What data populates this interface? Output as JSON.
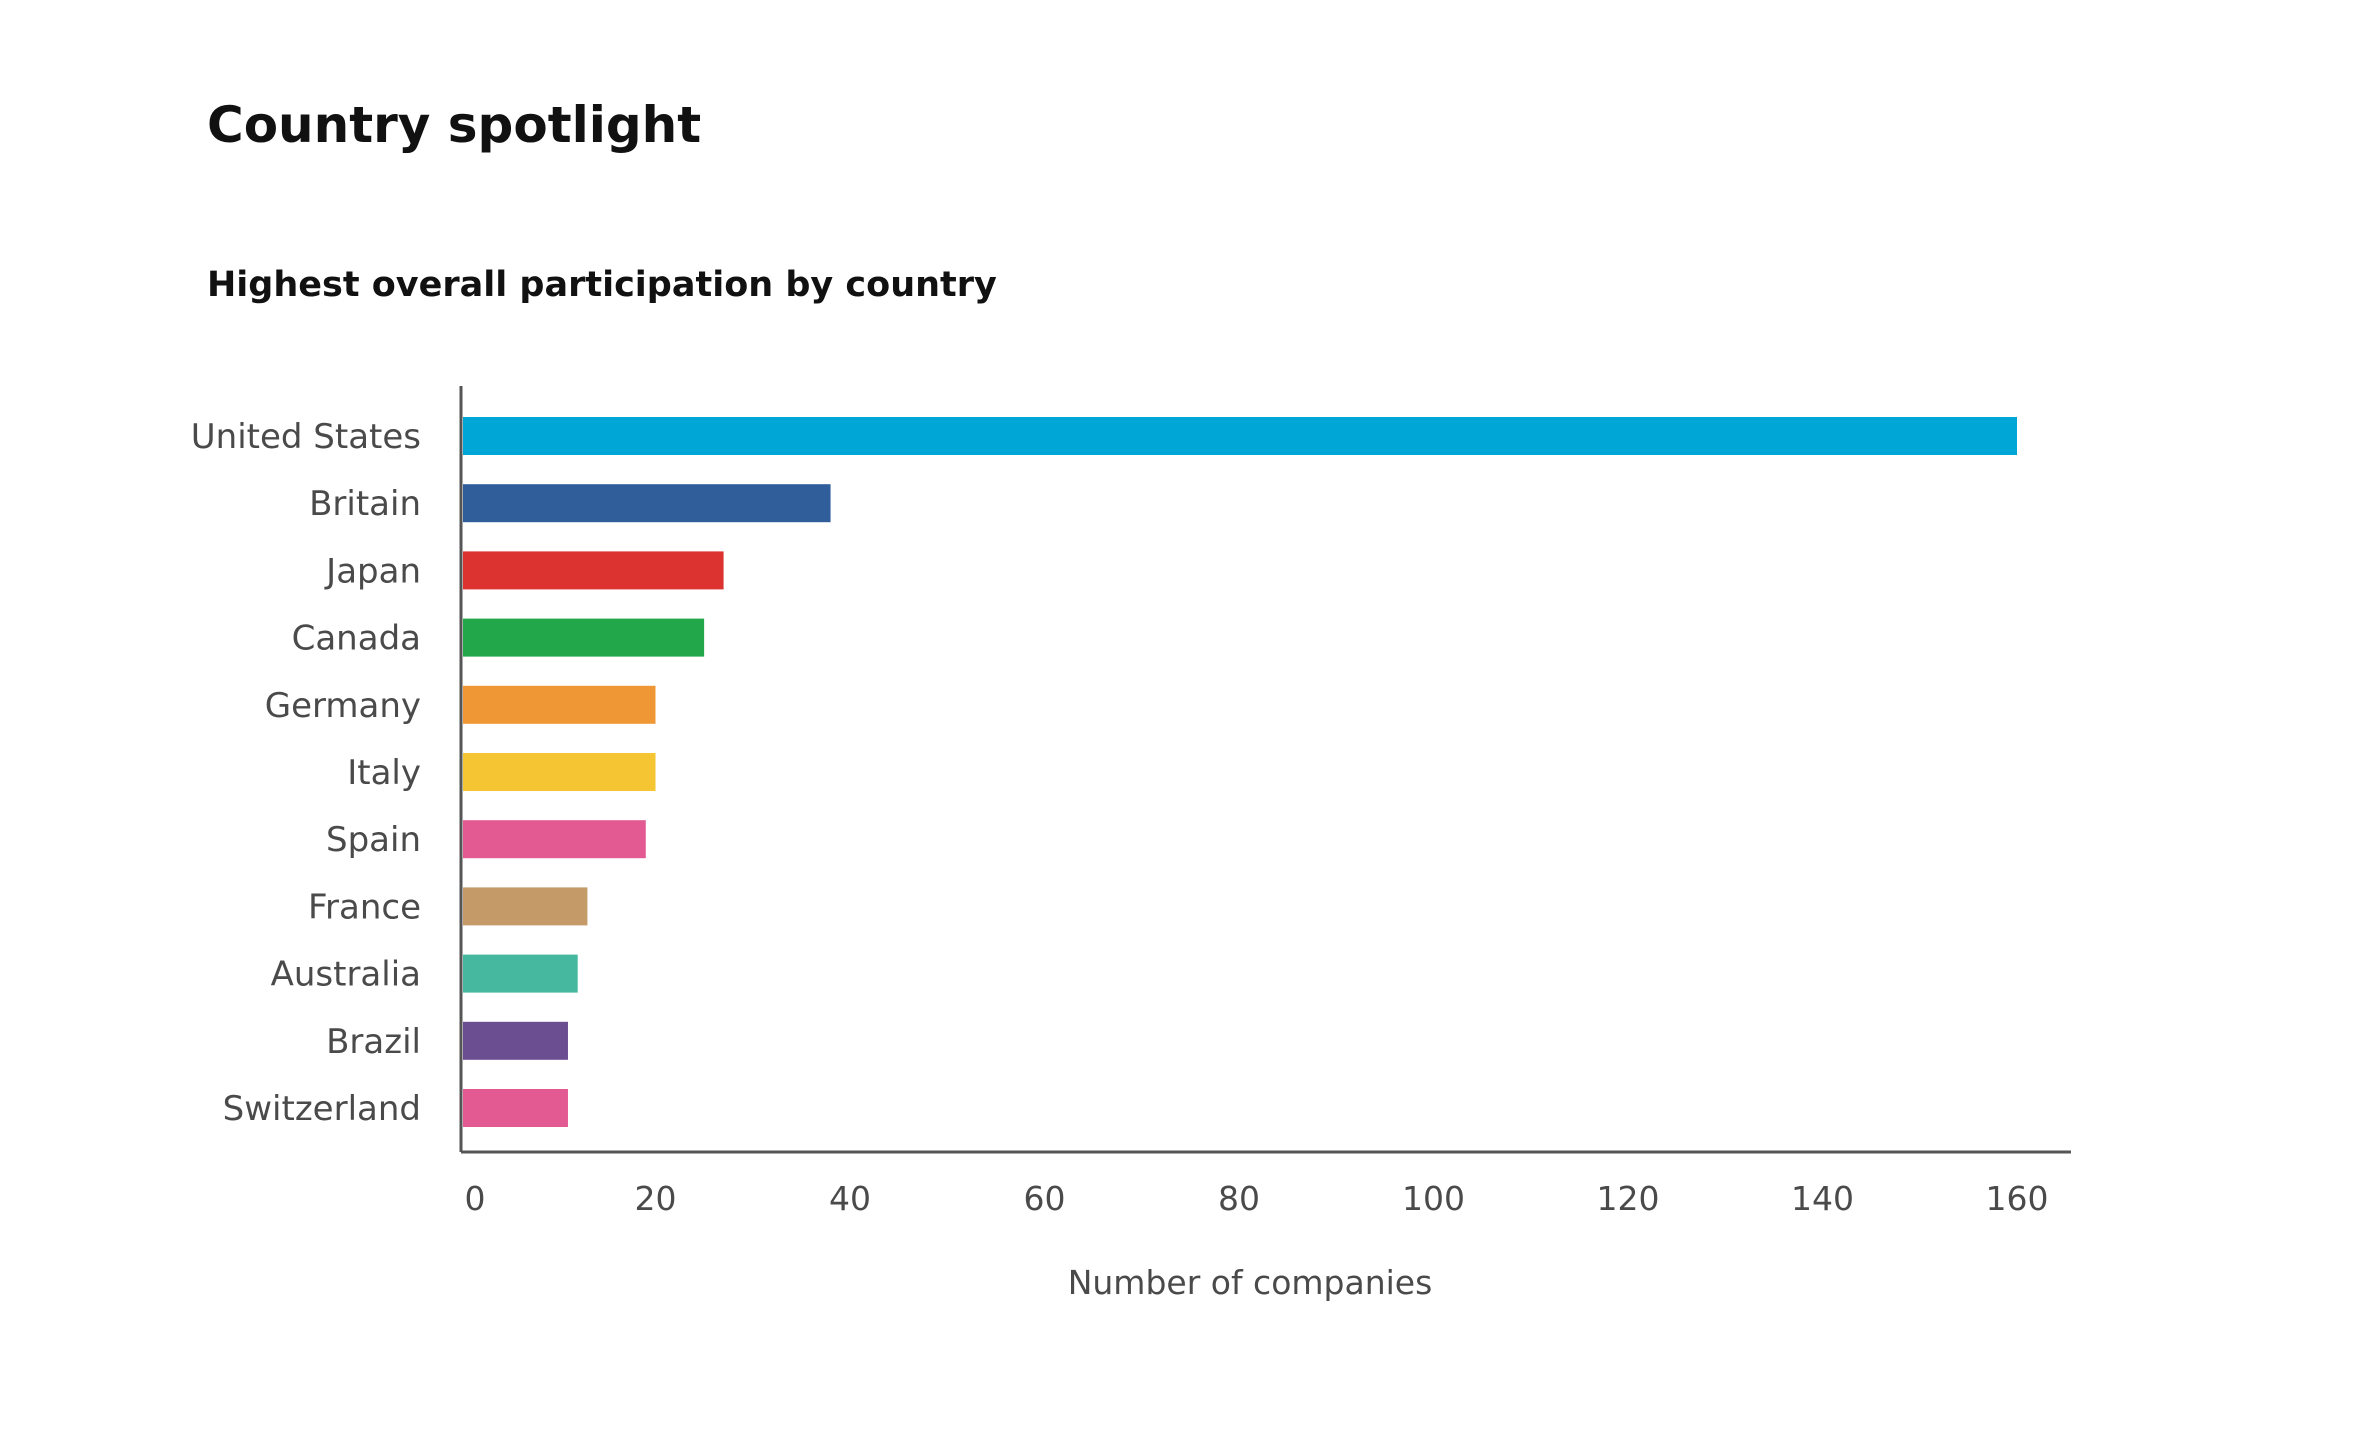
{
  "page": {
    "title": "Country spotlight"
  },
  "chart_data": {
    "type": "bar",
    "orientation": "horizontal",
    "title": "Highest overall participation by country",
    "xlabel": "Number of companies",
    "ylabel": "",
    "xlim": [
      0,
      165
    ],
    "xticks": [
      0,
      20,
      40,
      60,
      80,
      100,
      120,
      140,
      160
    ],
    "grid": false,
    "categories": [
      "United States",
      "Britain",
      "Japan",
      "Canada",
      "Germany",
      "Italy",
      "Spain",
      "France",
      "Australia",
      "Brazil",
      "Switzerland"
    ],
    "values": [
      160,
      38,
      27,
      25,
      20,
      20,
      19,
      13,
      12,
      11,
      11
    ],
    "colors": [
      "#00a6d6",
      "#2f5e9b",
      "#dc3230",
      "#22a84a",
      "#ef9734",
      "#f6c533",
      "#e25a91",
      "#c49a68",
      "#47b8a0",
      "#6b4e91",
      "#e25a91"
    ]
  }
}
